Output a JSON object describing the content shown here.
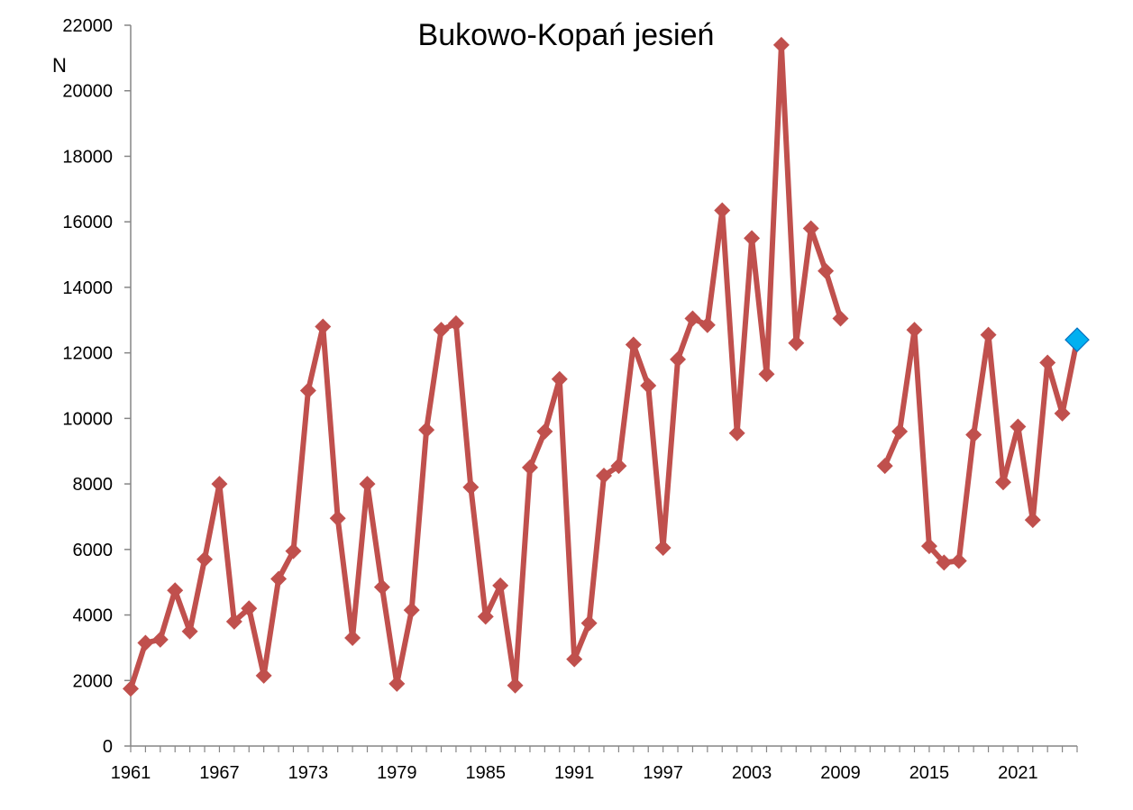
{
  "chart_data": {
    "type": "line",
    "title": "Bukowo-Kopań jesień",
    "ylabel": "N",
    "xlabel": "",
    "ylim": [
      0,
      22000
    ],
    "yticks": [
      0,
      2000,
      4000,
      6000,
      8000,
      10000,
      12000,
      14000,
      16000,
      18000,
      20000,
      22000
    ],
    "xlim": [
      1961,
      2025
    ],
    "xticks": [
      1961,
      1967,
      1973,
      1979,
      1985,
      1991,
      1997,
      2003,
      2009,
      2015,
      2021
    ],
    "grid": false,
    "series": [
      {
        "color": "#C0504D",
        "marker": "diamond",
        "points": [
          [
            1961,
            1750
          ],
          [
            1962,
            3150
          ],
          [
            1963,
            3250
          ],
          [
            1964,
            4750
          ],
          [
            1965,
            3500
          ],
          [
            1966,
            5700
          ],
          [
            1967,
            8000
          ],
          [
            1968,
            3800
          ],
          [
            1969,
            4200
          ],
          [
            1970,
            2150
          ],
          [
            1971,
            5100
          ],
          [
            1972,
            5950
          ],
          [
            1973,
            10850
          ],
          [
            1974,
            12800
          ],
          [
            1975,
            6950
          ],
          [
            1976,
            3300
          ],
          [
            1977,
            8000
          ],
          [
            1978,
            4850
          ],
          [
            1979,
            1900
          ],
          [
            1980,
            4150
          ],
          [
            1981,
            9650
          ],
          [
            1982,
            12700
          ],
          [
            1983,
            12900
          ],
          [
            1984,
            7900
          ],
          [
            1985,
            3950
          ],
          [
            1986,
            4900
          ],
          [
            1987,
            1850
          ],
          [
            1988,
            8500
          ],
          [
            1989,
            9600
          ],
          [
            1990,
            11200
          ],
          [
            1991,
            2650
          ],
          [
            1992,
            3750
          ],
          [
            1993,
            8250
          ],
          [
            1994,
            8550
          ],
          [
            1995,
            12250
          ],
          [
            1996,
            11000
          ],
          [
            1997,
            6050
          ],
          [
            1998,
            11800
          ],
          [
            1999,
            13050
          ],
          [
            2000,
            12850
          ],
          [
            2001,
            16350
          ],
          [
            2002,
            9550
          ],
          [
            2003,
            15500
          ],
          [
            2004,
            11350
          ],
          [
            2005,
            21400
          ],
          [
            2006,
            12300
          ],
          [
            2007,
            15800
          ],
          [
            2008,
            14500
          ],
          [
            2009,
            13050
          ],
          null,
          null,
          [
            2012,
            8550
          ],
          [
            2013,
            9600
          ],
          [
            2014,
            12700
          ],
          [
            2015,
            6100
          ],
          [
            2016,
            5600
          ],
          [
            2017,
            5650
          ],
          [
            2018,
            9500
          ],
          [
            2019,
            12550
          ],
          [
            2020,
            8050
          ],
          [
            2021,
            9750
          ],
          [
            2022,
            6900
          ],
          [
            2023,
            11700
          ],
          [
            2024,
            10150
          ],
          [
            2025,
            12400
          ]
        ]
      }
    ],
    "highlight_point": {
      "x": 2025,
      "y": 12400,
      "color": "#00B0F0"
    }
  }
}
